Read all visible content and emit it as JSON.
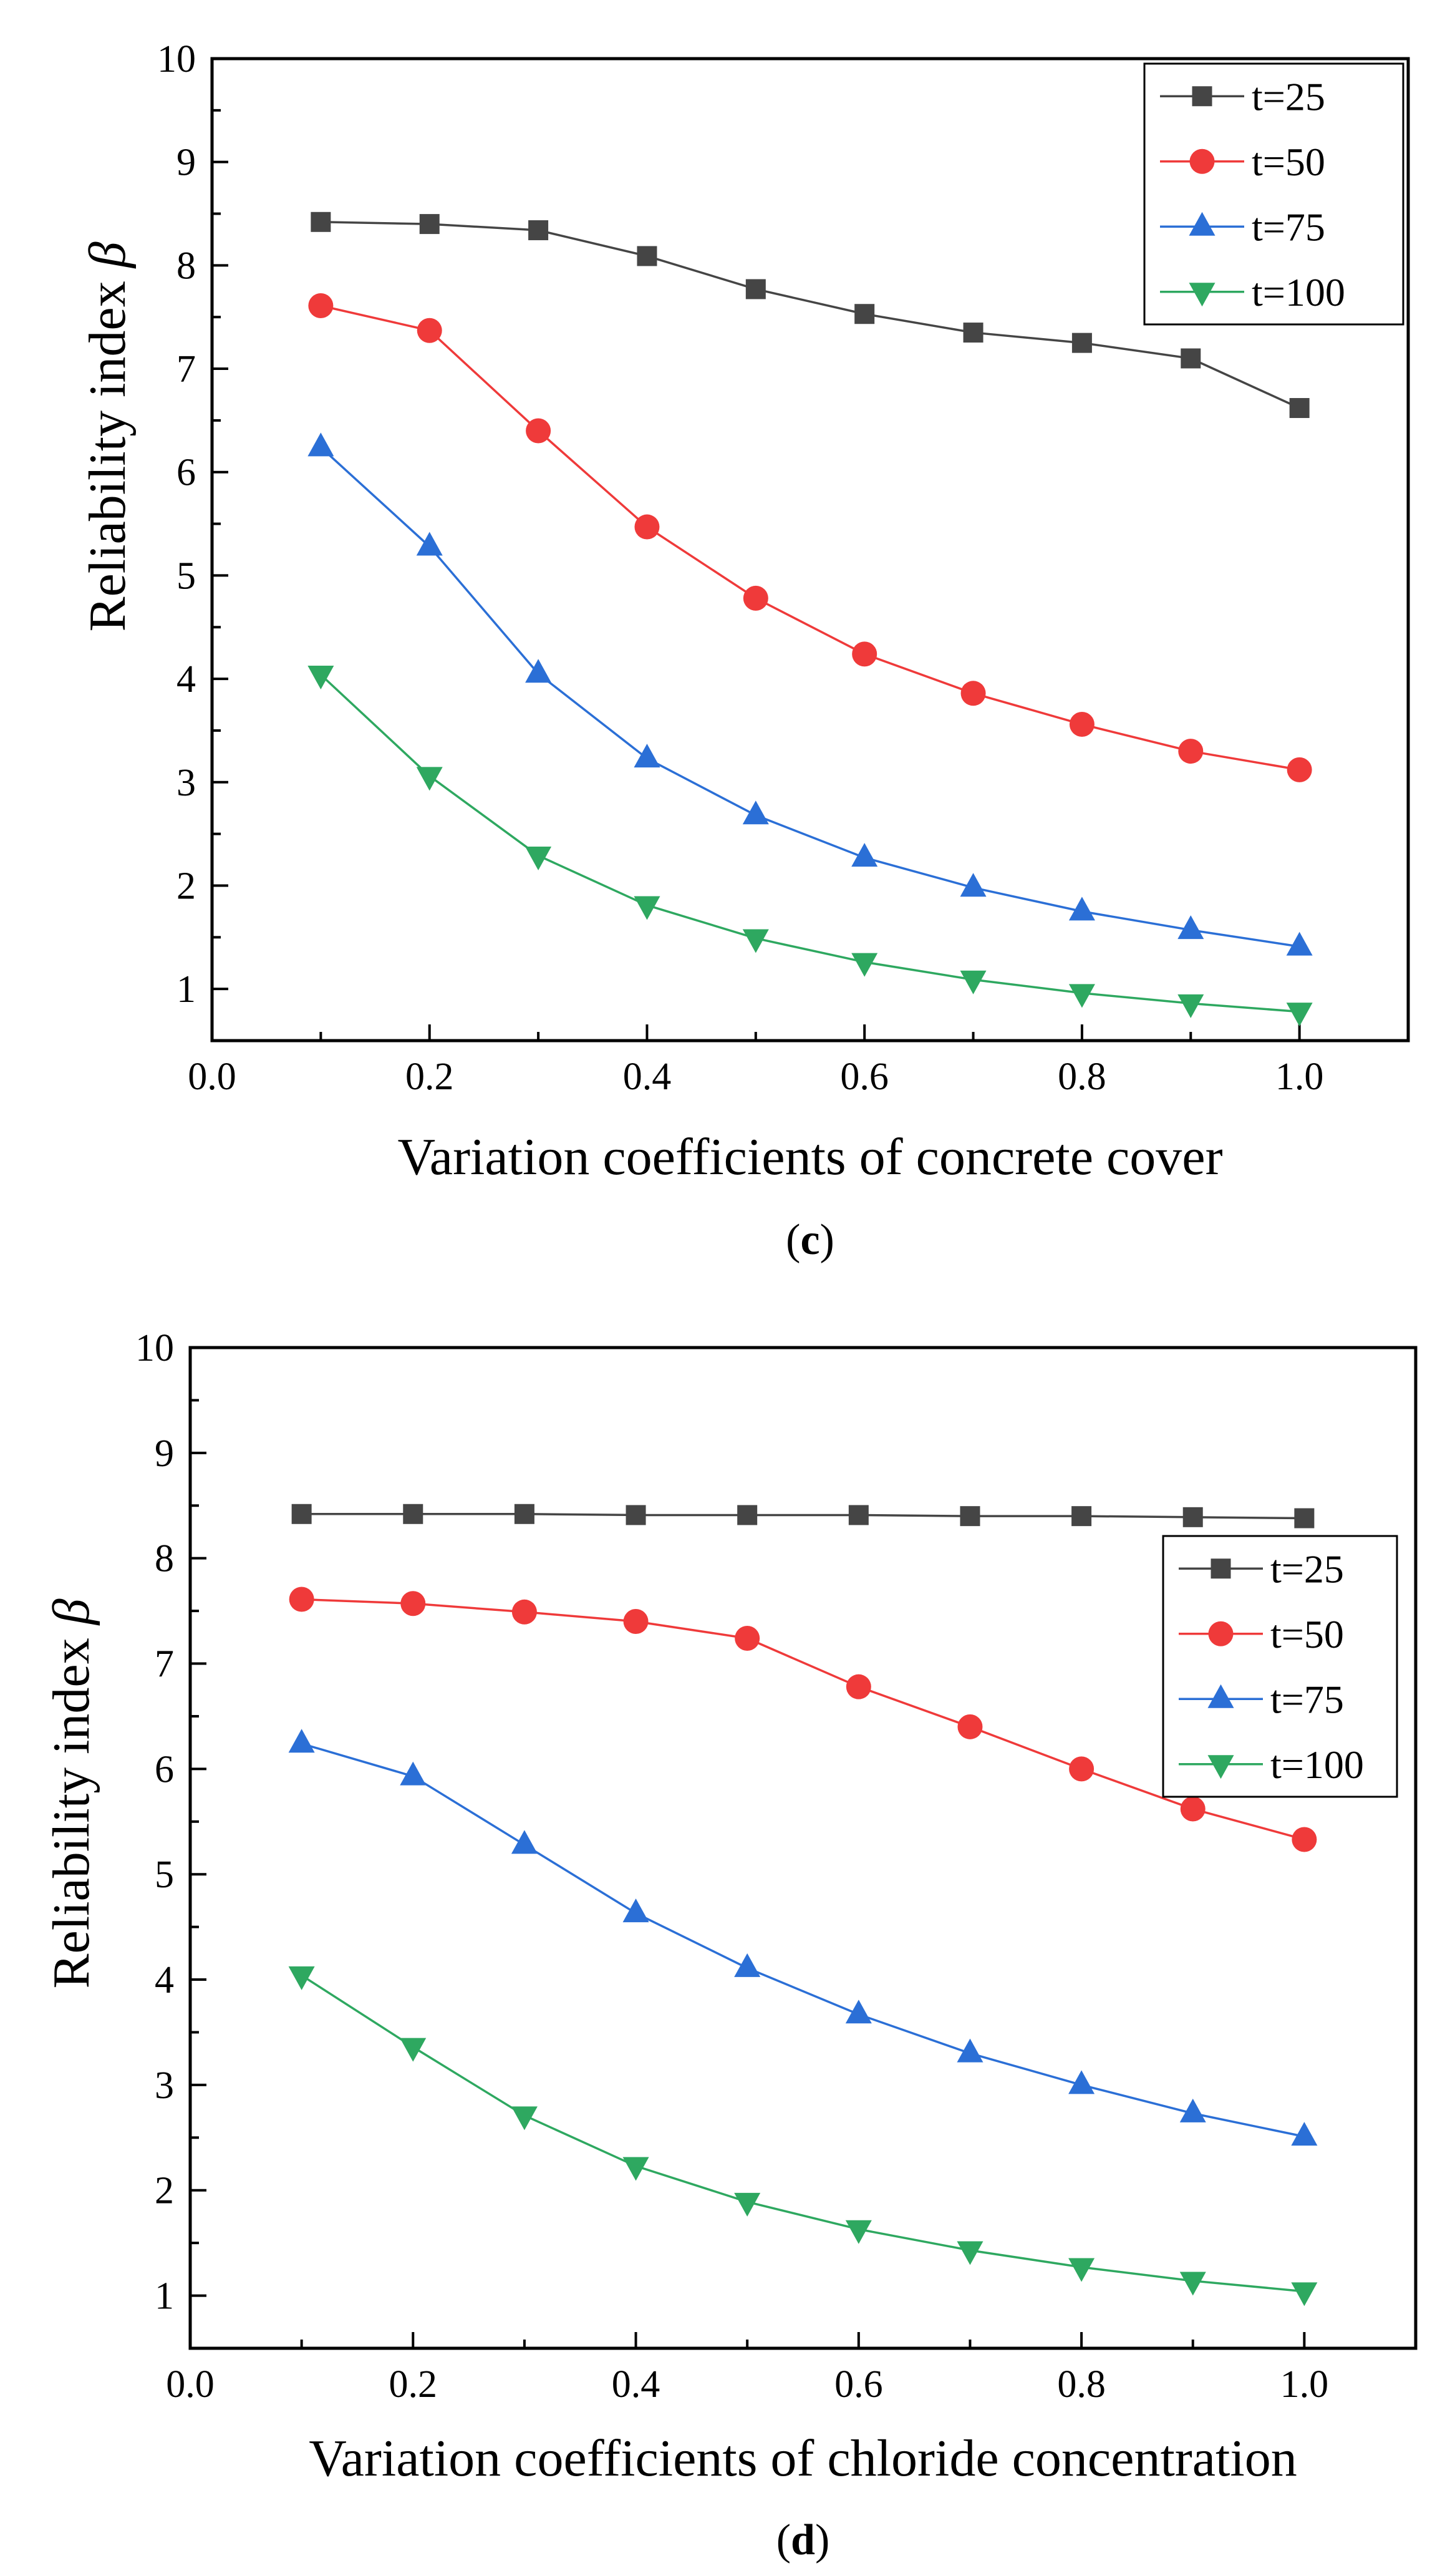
{
  "chart_data": [
    {
      "type": "line",
      "panel": "c",
      "caption_letter": "c",
      "title": "",
      "xlabel": "Variation coefficients of concrete cover",
      "ylabel": "Reliability index",
      "ylabel_symbol": "β",
      "xlim": [
        0.0,
        1.1
      ],
      "ylim": [
        0.5,
        10
      ],
      "xticks": [
        0.0,
        0.2,
        0.4,
        0.6,
        0.8,
        1.0
      ],
      "xtick_labels": [
        "0.0",
        "0.2",
        "0.4",
        "0.6",
        "0.8",
        "1.0"
      ],
      "yticks": [
        1,
        2,
        3,
        4,
        5,
        6,
        7,
        8,
        9,
        10
      ],
      "ytick_labels": [
        "1",
        "2",
        "3",
        "4",
        "5",
        "6",
        "7",
        "8",
        "9",
        "10"
      ],
      "grid": false,
      "legend_position": "top-right",
      "x": [
        0.1,
        0.2,
        0.3,
        0.4,
        0.5,
        0.6,
        0.7,
        0.8,
        0.9,
        1.0
      ],
      "series": [
        {
          "name": "t=25",
          "color": "#454545",
          "marker": "square",
          "values": [
            8.42,
            8.4,
            8.34,
            8.09,
            7.77,
            7.53,
            7.35,
            7.25,
            7.1,
            6.62
          ]
        },
        {
          "name": "t=50",
          "color": "#ef3a3a",
          "marker": "circle",
          "values": [
            7.61,
            7.37,
            6.4,
            5.47,
            4.78,
            4.24,
            3.86,
            3.56,
            3.3,
            3.12
          ]
        },
        {
          "name": "t=75",
          "color": "#2b6fd6",
          "marker": "triangle-up",
          "values": [
            6.24,
            5.28,
            4.05,
            3.23,
            2.68,
            2.27,
            1.98,
            1.75,
            1.57,
            1.41
          ]
        },
        {
          "name": "t=100",
          "color": "#2ea860",
          "marker": "triangle-down",
          "values": [
            4.04,
            3.06,
            2.29,
            1.81,
            1.49,
            1.26,
            1.09,
            0.96,
            0.86,
            0.78
          ]
        }
      ]
    },
    {
      "type": "line",
      "panel": "d",
      "caption_letter": "d",
      "title": "",
      "xlabel": "Variation coefficients of chloride concentration",
      "ylabel": "Reliability index",
      "ylabel_symbol": "β",
      "xlim": [
        0.0,
        1.1
      ],
      "ylim": [
        0.5,
        10
      ],
      "xticks": [
        0.0,
        0.2,
        0.4,
        0.6,
        0.8,
        1.0
      ],
      "xtick_labels": [
        "0.0",
        "0.2",
        "0.4",
        "0.6",
        "0.8",
        "1.0"
      ],
      "yticks": [
        1,
        2,
        3,
        4,
        5,
        6,
        7,
        8,
        9,
        10
      ],
      "ytick_labels": [
        "1",
        "2",
        "3",
        "4",
        "5",
        "6",
        "7",
        "8",
        "9",
        "10"
      ],
      "grid": false,
      "legend_position": "right",
      "x": [
        0.1,
        0.2,
        0.3,
        0.4,
        0.5,
        0.6,
        0.7,
        0.8,
        0.9,
        1.0
      ],
      "series": [
        {
          "name": "t=25",
          "color": "#454545",
          "marker": "square",
          "values": [
            8.42,
            8.42,
            8.42,
            8.41,
            8.41,
            8.41,
            8.4,
            8.4,
            8.39,
            8.38
          ]
        },
        {
          "name": "t=50",
          "color": "#ef3a3a",
          "marker": "circle",
          "values": [
            7.61,
            7.57,
            7.49,
            7.4,
            7.24,
            6.78,
            6.4,
            6.0,
            5.62,
            5.33
          ]
        },
        {
          "name": "t=75",
          "color": "#2b6fd6",
          "marker": "triangle-up",
          "values": [
            6.24,
            5.93,
            5.28,
            4.63,
            4.11,
            3.67,
            3.3,
            3.0,
            2.73,
            2.51
          ]
        },
        {
          "name": "t=100",
          "color": "#2ea860",
          "marker": "triangle-down",
          "values": [
            4.04,
            3.36,
            2.71,
            2.23,
            1.89,
            1.63,
            1.43,
            1.27,
            1.14,
            1.04
          ]
        }
      ]
    }
  ]
}
